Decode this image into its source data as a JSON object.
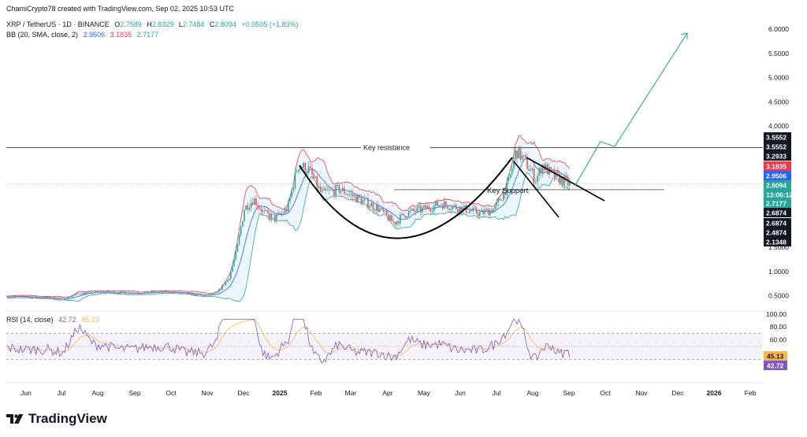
{
  "header": {
    "credit": "ChamiCrypto78 created with TradingView.com, Sep 02, 2025 10:53 UTC",
    "symbol": "XRP / TetherUS · 1D · BINANCE",
    "o_label": "O",
    "o_value": "2.7589",
    "h_label": "H",
    "h_value": "2.8329",
    "l_label": "L",
    "l_value": "2.7484",
    "c_label": "C",
    "c_value": "2.8094",
    "change": "+0.0505 (+1.83%)",
    "bb_label": "BB (20, SMA, close, 2)",
    "bb_values": [
      "2.9506",
      "3.1835",
      "2.7177"
    ]
  },
  "rsi_header": {
    "label": "RSI (14, close)",
    "values": [
      "42.72",
      "45.13"
    ]
  },
  "annotations": {
    "resistance": "Key resistance",
    "support": "Key Support"
  },
  "footer": {
    "brand": "TradingView"
  },
  "colors": {
    "up": "#26a69a",
    "down": "#ef5350",
    "bb_upper": "#f23645",
    "bb_basis": "#2962ff",
    "bb_fill": "#e3f2fd",
    "rsi": "#7e57c2",
    "rsi_ma": "#f7b84b",
    "projection": "#1ca085",
    "price_tag": "#26a69a",
    "label_dark": "#131722"
  },
  "price_tags": [
    {
      "text": "3.5552",
      "type": "dark"
    },
    {
      "text": "3.5552",
      "type": "dark"
    },
    {
      "text": "3.2933",
      "type": "dark"
    },
    {
      "text": "3.1835",
      "type": "red"
    },
    {
      "text": "2.9506",
      "type": "blue"
    },
    {
      "text": "2.8094",
      "type": "green"
    },
    {
      "text": "13:06:12",
      "type": "green"
    },
    {
      "text": "2.7177",
      "type": "green"
    },
    {
      "text": "2.6874",
      "type": "dark"
    },
    {
      "text": "2.6874",
      "type": "dark"
    },
    {
      "text": "2.4874",
      "type": "dark"
    },
    {
      "text": "2.1348",
      "type": "dark"
    }
  ],
  "rsi_tags": [
    {
      "text": "45.13",
      "type": "yellow"
    },
    {
      "text": "42.72",
      "type": "purple"
    }
  ],
  "chart_data": {
    "type": "candlestick",
    "x_ticks": [
      "Jun",
      "Jul",
      "Aug",
      "Sep",
      "Oct",
      "Nov",
      "Dec",
      "2025",
      "Feb",
      "Mar",
      "Apr",
      "May",
      "Jun",
      "Jul",
      "Aug",
      "Sep",
      "Oct",
      "Nov",
      "Dec",
      "2026",
      "Feb"
    ],
    "y_ticks": [
      "6.0000",
      "5.5000",
      "5.0000",
      "4.5000",
      "4.0000",
      "1.5000",
      "1.0000",
      "0.5000"
    ],
    "rsi_ticks": [
      "100.00",
      "80.00",
      "60.00",
      "20.00"
    ],
    "resistance_level": 3.5552,
    "support_level": 2.6874,
    "last_close": 2.8094,
    "approx_close_path": [
      {
        "t": "Jun",
        "v": 0.49
      },
      {
        "t": "Jul",
        "v": 0.47
      },
      {
        "t": "Aug",
        "v": 0.56
      },
      {
        "t": "Sep",
        "v": 0.58
      },
      {
        "t": "Oct",
        "v": 0.54
      },
      {
        "t": "Nov",
        "v": 0.52
      },
      {
        "t": "Nov (late)",
        "v": 1.1
      },
      {
        "t": "Dec",
        "v": 2.4
      },
      {
        "t": "Jan",
        "v": 2.3
      },
      {
        "t": "Jan (mid)",
        "v": 3.2
      },
      {
        "t": "Feb",
        "v": 2.7
      },
      {
        "t": "Mar",
        "v": 2.4
      },
      {
        "t": "Apr",
        "v": 2.1
      },
      {
        "t": "May",
        "v": 2.3
      },
      {
        "t": "Jun",
        "v": 2.2
      },
      {
        "t": "Jul",
        "v": 2.9
      },
      {
        "t": "Jul (mid)",
        "v": 3.55
      },
      {
        "t": "Aug",
        "v": 3.0
      },
      {
        "t": "Sep",
        "v": 2.8094
      }
    ]
  }
}
